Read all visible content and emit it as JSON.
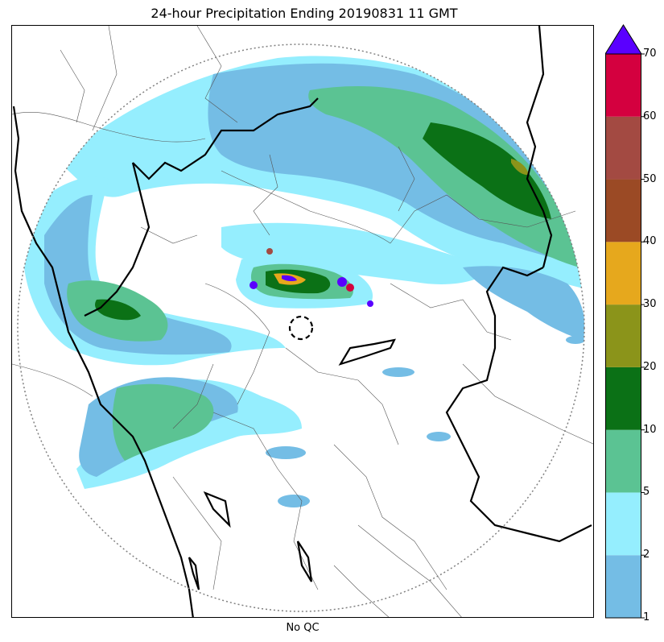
{
  "title": "24-hour Precipitation Ending 20190831 11 GMT",
  "xlabel": "No QC",
  "colorbar": {
    "levels": [
      "1",
      "2",
      "5",
      "10",
      "20",
      "30",
      "40",
      "50",
      "60",
      "70"
    ],
    "colors": [
      "#74bde5",
      "#95eefe",
      "#5bc393",
      "#0b7116",
      "#8b941a",
      "#e6a81d",
      "#9b4a25",
      "#a34a42",
      "#d4003f"
    ],
    "extend_color": "#5a00ff"
  },
  "map": {
    "radar_range_ring_color": "#808080",
    "border_color": "#000000",
    "district_color": "#555555"
  }
}
